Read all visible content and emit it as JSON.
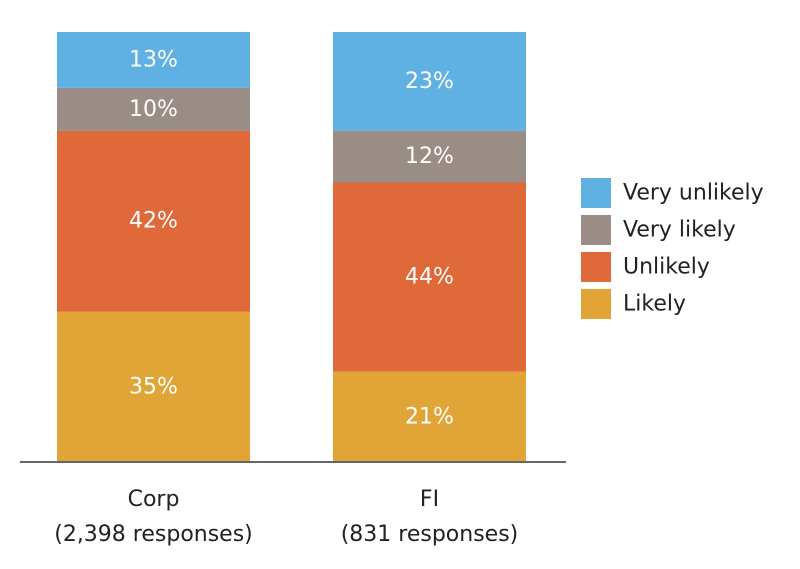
{
  "chart_data": {
    "type": "bar",
    "stacked": true,
    "value_unit": "%",
    "categories": [
      {
        "line1": "Corp",
        "line2": "(2,398 responses)"
      },
      {
        "line1": "FI",
        "line2": "(831 responses)"
      }
    ],
    "series": [
      {
        "name": "Likely",
        "color": "#e0a536",
        "values": [
          35,
          21
        ]
      },
      {
        "name": "Unlikely",
        "color": "#e0693a",
        "values": [
          42,
          44
        ]
      },
      {
        "name": "Very likely",
        "color": "#9a8d86",
        "values": [
          10,
          12
        ]
      },
      {
        "name": "Very unlikely",
        "color": "#5fb0e3",
        "values": [
          13,
          23
        ]
      }
    ],
    "legend_order": [
      "Very unlikely",
      "Very likely",
      "Unlikely",
      "Likely"
    ],
    "legend_position": "right",
    "ylim": [
      0,
      100
    ],
    "grid": false,
    "axis_color": "#666666",
    "label_color": "#ffffff",
    "text_color": "#222222"
  }
}
